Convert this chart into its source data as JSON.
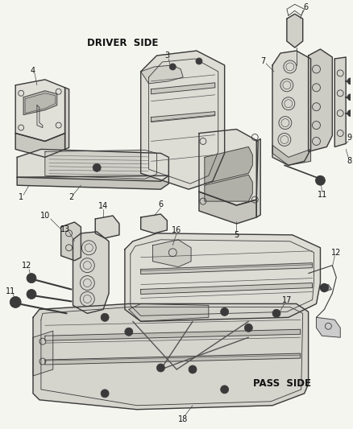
{
  "background_color": "#f5f5f0",
  "line_color": "#3a3a3a",
  "label_color": "#111111",
  "driver_side_label": "DRIVER  SIDE",
  "pass_side_label": "PASS  SIDE",
  "figsize": [
    4.38,
    5.33
  ],
  "dpi": 100
}
